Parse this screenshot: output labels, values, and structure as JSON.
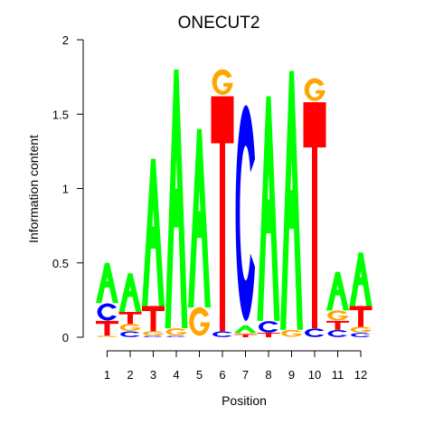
{
  "chart_data": {
    "type": "sequence-logo",
    "title": "ONECUT2",
    "xlabel": "Position",
    "ylabel": "Information content",
    "ylim": [
      0,
      2
    ],
    "yticks": [
      "0",
      "0.5",
      "1",
      "1.5",
      "2"
    ],
    "ytick_values": [
      0,
      0.5,
      1,
      1.5,
      2
    ],
    "positions": [
      "1",
      "2",
      "3",
      "4",
      "5",
      "6",
      "7",
      "8",
      "9",
      "10",
      "11",
      "12"
    ],
    "colors": {
      "A": "#00ff00",
      "C": "#0000ff",
      "G": "#ffa500",
      "T": "#ff0000"
    },
    "stacks": [
      [
        {
          "letter": "G",
          "height": 0.01
        },
        {
          "letter": "T",
          "height": 0.1
        },
        {
          "letter": "C",
          "height": 0.12
        },
        {
          "letter": "A",
          "height": 0.27
        }
      ],
      [
        {
          "letter": "C",
          "height": 0.04
        },
        {
          "letter": "G",
          "height": 0.05
        },
        {
          "letter": "T",
          "height": 0.08
        },
        {
          "letter": "A",
          "height": 0.26
        }
      ],
      [
        {
          "letter": "C",
          "height": 0.01
        },
        {
          "letter": "G",
          "height": 0.03
        },
        {
          "letter": "T",
          "height": 0.17
        },
        {
          "letter": "A",
          "height": 0.99
        }
      ],
      [
        {
          "letter": "C",
          "height": 0.01
        },
        {
          "letter": "G",
          "height": 0.05
        },
        {
          "letter": "A",
          "height": 1.74
        }
      ],
      [
        {
          "letter": "G",
          "height": 0.2
        },
        {
          "letter": "A",
          "height": 1.2
        }
      ],
      [
        {
          "letter": "C",
          "height": 0.04
        },
        {
          "letter": "T",
          "height": 1.58
        },
        {
          "letter": "G",
          "height": 0.18
        }
      ],
      [
        {
          "letter": "T",
          "height": 0.02
        },
        {
          "letter": "G",
          "height": 0.01
        },
        {
          "letter": "A",
          "height": 0.05
        },
        {
          "letter": "C",
          "height": 1.51
        }
      ],
      [
        {
          "letter": "T",
          "height": 0.03
        },
        {
          "letter": "C",
          "height": 0.08
        },
        {
          "letter": "A",
          "height": 1.51
        }
      ],
      [
        {
          "letter": "G",
          "height": 0.05
        },
        {
          "letter": "A",
          "height": 1.74
        }
      ],
      [
        {
          "letter": "C",
          "height": 0.06
        },
        {
          "letter": "T",
          "height": 1.52
        },
        {
          "letter": "G",
          "height": 0.16
        }
      ],
      [
        {
          "letter": "C",
          "height": 0.05
        },
        {
          "letter": "T",
          "height": 0.06
        },
        {
          "letter": "G",
          "height": 0.07
        },
        {
          "letter": "A",
          "height": 0.26
        }
      ],
      [
        {
          "letter": "C",
          "height": 0.03
        },
        {
          "letter": "G",
          "height": 0.04
        },
        {
          "letter": "T",
          "height": 0.14
        },
        {
          "letter": "A",
          "height": 0.36
        }
      ]
    ]
  }
}
